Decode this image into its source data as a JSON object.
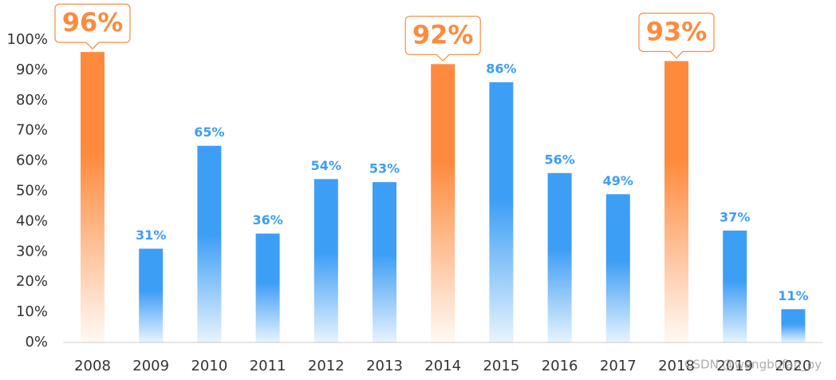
{
  "chart_data": {
    "type": "bar",
    "categories": [
      "2008",
      "2009",
      "2010",
      "2011",
      "2012",
      "2013",
      "2014",
      "2015",
      "2016",
      "2017",
      "2018",
      "2019",
      "2020"
    ],
    "values": [
      96,
      31,
      65,
      36,
      54,
      53,
      92,
      86,
      56,
      49,
      93,
      37,
      11
    ],
    "value_labels": [
      "96%",
      "31%",
      "65%",
      "36%",
      "54%",
      "53%",
      "92%",
      "86%",
      "56%",
      "49%",
      "93%",
      "37%",
      "11%"
    ],
    "color": "#3d9ef5",
    "highlight_color": "#ff8a3d",
    "highlight": [
      0,
      6,
      10
    ],
    "ylim": [
      0,
      100
    ],
    "yticks": [
      {
        "value": 0,
        "label": "0%"
      },
      {
        "value": 10,
        "label": "10%"
      },
      {
        "value": 20,
        "label": "20%"
      },
      {
        "value": 30,
        "label": "30%"
      },
      {
        "value": 40,
        "label": "40%"
      },
      {
        "value": 50,
        "label": "50%"
      },
      {
        "value": 60,
        "label": "60%"
      },
      {
        "value": 70,
        "label": "70%"
      },
      {
        "value": 80,
        "label": "80%"
      },
      {
        "value": 90,
        "label": "90%"
      },
      {
        "value": 100,
        "label": "100%"
      }
    ],
    "grid": false,
    "watermark": "CSDN @wangbufan_py"
  }
}
